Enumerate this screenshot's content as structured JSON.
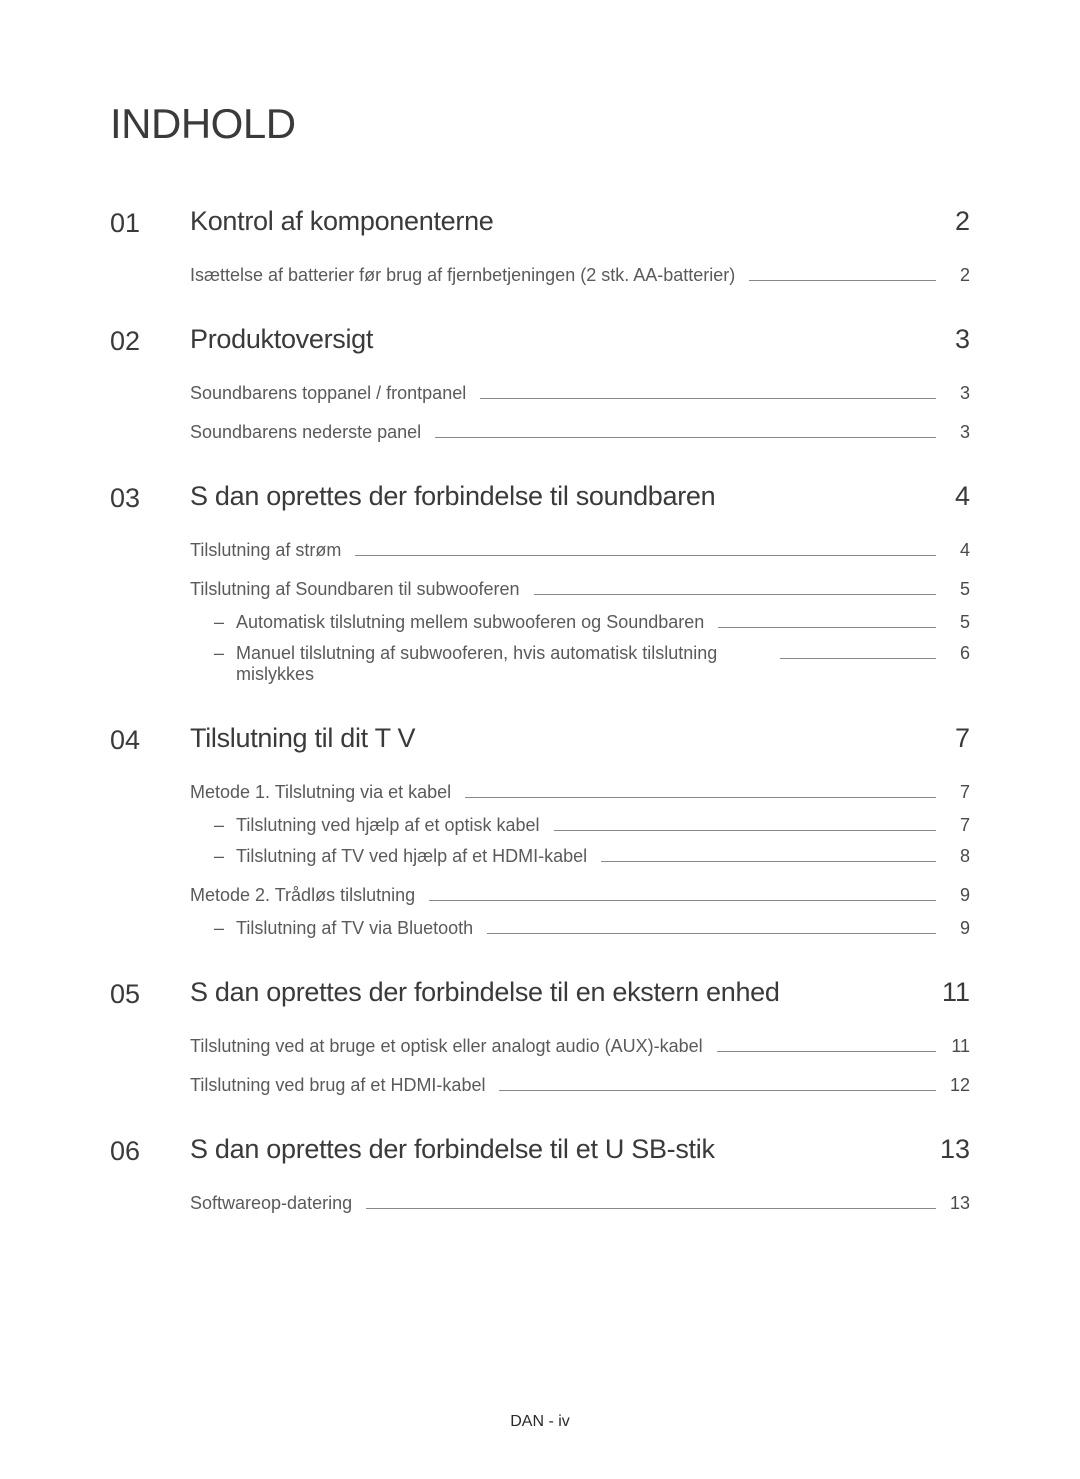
{
  "page_title": "INDHOLD",
  "footer": "DAN - iv",
  "colors": {
    "background": "#ffffff",
    "text_primary": "#3a3a3a",
    "text_secondary": "#5a5a5a",
    "leader_line": "#888888"
  },
  "typography": {
    "title_fontsize": 42,
    "section_fontsize": 27,
    "entry_fontsize": 18,
    "footer_fontsize": 16
  },
  "sections": [
    {
      "number": "01",
      "title": "Kontrol af komponenterne",
      "page": "2",
      "entries": [
        {
          "text": "Isættelse af batterier før brug af fjernbetjeningen (2 stk. AA-batterier)",
          "page": "2",
          "subs": []
        }
      ]
    },
    {
      "number": "02",
      "title": "Produktoversigt",
      "page": "3",
      "entries": [
        {
          "text": "Soundbarens toppanel / frontpanel",
          "page": "3",
          "subs": []
        },
        {
          "text": "Soundbarens nederste panel",
          "page": "3",
          "subs": []
        }
      ]
    },
    {
      "number": "03",
      "title": "S dan oprettes der forbindelse til soundbaren",
      "page": "4",
      "entries": [
        {
          "text": "Tilslutning af strøm",
          "page": "4",
          "subs": []
        },
        {
          "text": "Tilslutning af Soundbaren til subwooferen",
          "page": "5",
          "subs": [
            {
              "text": "Automatisk tilslutning mellem subwooferen og Soundbaren",
              "page": "5"
            },
            {
              "text": "Manuel tilslutning af subwooferen, hvis automatisk tilslutning mislykkes",
              "page": "6"
            }
          ]
        }
      ]
    },
    {
      "number": "04",
      "title": "Tilslutning til dit T  V",
      "page": "7",
      "entries": [
        {
          "text": "Metode 1. Tilslutning via et kabel",
          "page": "7",
          "subs": [
            {
              "text": "Tilslutning ved hjælp af et optisk kabel",
              "page": "7"
            },
            {
              "text": "Tilslutning af TV ved hjælp af et HDMI-kabel",
              "page": "8"
            }
          ]
        },
        {
          "text": "Metode 2. Trådløs tilslutning",
          "page": "9",
          "subs": [
            {
              "text": "Tilslutning af TV via Bluetooth",
              "page": "9"
            }
          ]
        }
      ]
    },
    {
      "number": "05",
      "title": "S dan oprettes der forbindelse til en ekstern enhed",
      "page": "11",
      "entries": [
        {
          "text": "Tilslutning ved at bruge et optisk eller analogt audio (AUX)-kabel",
          "page": "11",
          "subs": []
        },
        {
          "text": "Tilslutning ved brug af et HDMI-kabel",
          "page": "12",
          "subs": []
        }
      ]
    },
    {
      "number": "06",
      "title": "S dan oprettes der forbindelse til et U  SB-stik",
      "page": "13",
      "entries": [
        {
          "text": "Softwareop-datering",
          "page": "13",
          "subs": []
        }
      ]
    }
  ]
}
